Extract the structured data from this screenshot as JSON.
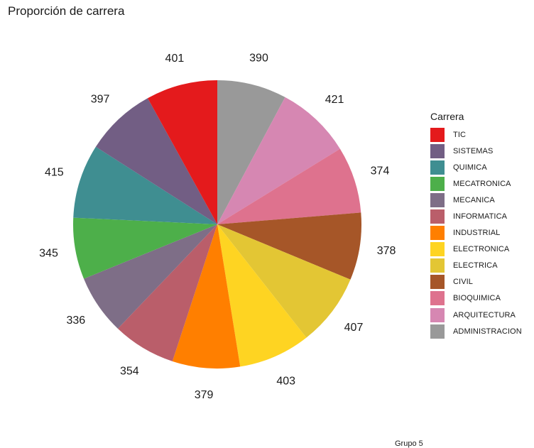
{
  "chart_data": {
    "type": "pie",
    "title": "Proporción de carrera",
    "legend_title": "Carrera",
    "legend_position": "right",
    "caption": "Grupo 5",
    "slices": [
      {
        "label": "ADMINISTRACION",
        "value": 390,
        "color": "#999999"
      },
      {
        "label": "ARQUITECTURA",
        "value": 421,
        "color": "#D687B2"
      },
      {
        "label": "BIOQUIMICA",
        "value": 374,
        "color": "#DE728E"
      },
      {
        "label": "CIVIL",
        "value": 378,
        "color": "#A65628"
      },
      {
        "label": "ELECTRICA",
        "value": 407,
        "color": "#E3C634"
      },
      {
        "label": "ELECTRONICA",
        "value": 403,
        "color": "#FED422"
      },
      {
        "label": "INDUSTRIAL",
        "value": 379,
        "color": "#FF7F00"
      },
      {
        "label": "INFORMATICA",
        "value": 354,
        "color": "#BA5E6A"
      },
      {
        "label": "MECANICA",
        "value": 336,
        "color": "#7E6E87"
      },
      {
        "label": "MECATRONICA",
        "value": 345,
        "color": "#4DAF4A"
      },
      {
        "label": "QUIMICA",
        "value": 415,
        "color": "#3F8E91"
      },
      {
        "label": "SISTEMAS",
        "value": 397,
        "color": "#725E84"
      },
      {
        "label": "TIC",
        "value": 401,
        "color": "#E41A1C"
      }
    ]
  }
}
